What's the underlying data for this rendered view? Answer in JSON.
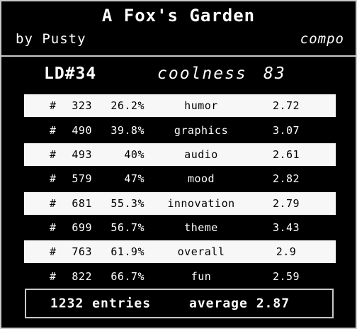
{
  "header": {
    "title": "A Fox's Garden",
    "byline": "by Pusty",
    "division": "compo"
  },
  "event": {
    "name": "LD#34",
    "coolness_label": "coolness",
    "coolness_value": "83"
  },
  "rankings": [
    {
      "hash": "#",
      "rank": "323",
      "percent": "26.2%",
      "category": "humor",
      "score": "2.72"
    },
    {
      "hash": "#",
      "rank": "490",
      "percent": "39.8%",
      "category": "graphics",
      "score": "3.07"
    },
    {
      "hash": "#",
      "rank": "493",
      "percent": "40%",
      "category": "audio",
      "score": "2.61"
    },
    {
      "hash": "#",
      "rank": "579",
      "percent": "47%",
      "category": "mood",
      "score": "2.82"
    },
    {
      "hash": "#",
      "rank": "681",
      "percent": "55.3%",
      "category": "innovation",
      "score": "2.79"
    },
    {
      "hash": "#",
      "rank": "699",
      "percent": "56.7%",
      "category": "theme",
      "score": "3.43"
    },
    {
      "hash": "#",
      "rank": "763",
      "percent": "61.9%",
      "category": "overall",
      "score": "2.9"
    },
    {
      "hash": "#",
      "rank": "822",
      "percent": "66.7%",
      "category": "fun",
      "score": "2.59"
    }
  ],
  "summary": {
    "entries": "1232 entries",
    "average": "average 2.87"
  },
  "colors": {
    "background": "#000000",
    "text": "#ffffff",
    "stripe": "#f7f7f7",
    "border": "#c8c8c8"
  }
}
